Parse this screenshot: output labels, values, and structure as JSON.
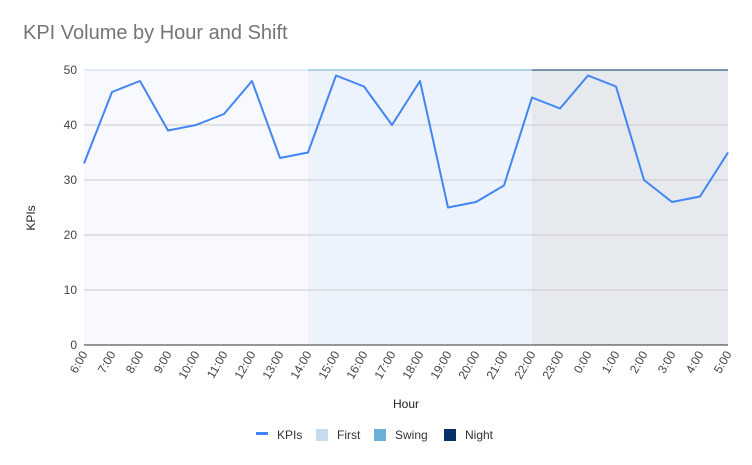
{
  "chart_data": {
    "type": "line",
    "title": "KPI Volume by Hour and Shift",
    "xlabel": "Hour",
    "ylabel": "KPIs",
    "ylim": [
      0,
      50
    ],
    "yticks": [
      0,
      10,
      20,
      30,
      40,
      50
    ],
    "grid": true,
    "legend_position": "bottom",
    "categories": [
      "6:00",
      "7:00",
      "8:00",
      "9:00",
      "10:00",
      "11:00",
      "12:00",
      "13:00",
      "14:00",
      "15:00",
      "16:00",
      "17:00",
      "18:00",
      "19:00",
      "20:00",
      "21:00",
      "22:00",
      "23:00",
      "0:00",
      "1:00",
      "2:00",
      "3:00",
      "4:00",
      "5:00"
    ],
    "series": [
      {
        "name": "KPIs",
        "color": "#4285f4",
        "values": [
          33,
          46,
          48,
          39,
          40,
          42,
          48,
          34,
          35,
          49,
          47,
          40,
          48,
          25,
          26,
          29,
          45,
          43,
          49,
          47,
          30,
          26,
          27,
          35
        ]
      }
    ],
    "shifts": [
      {
        "name": "First",
        "start": "6:00",
        "end": "14:00",
        "color": "#c6dbef",
        "fill": "#f7f9fe"
      },
      {
        "name": "Swing",
        "start": "14:00",
        "end": "22:00",
        "color": "#6baed6",
        "fill": "#edf3fc"
      },
      {
        "name": "Night",
        "start": "22:00",
        "end": "5:00",
        "color": "#08306b",
        "fill": "#e6e9ee"
      }
    ]
  }
}
